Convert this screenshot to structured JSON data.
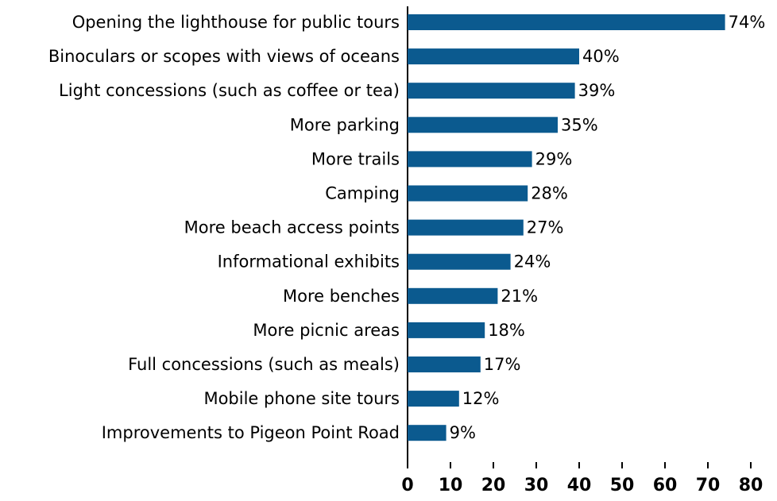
{
  "chart_data": {
    "type": "bar",
    "orientation": "horizontal",
    "color": "#0b5a8f",
    "categories": [
      "Opening the lighthouse for public tours",
      "Binoculars or scopes with views of oceans",
      "Light concessions (such as coffee or tea)",
      "More parking",
      "More trails",
      "Camping",
      "More beach access points",
      "Informational exhibits",
      "More benches",
      "More picnic areas",
      "Full concessions (such as meals)",
      "Mobile phone site tours",
      "Improvements to Pigeon Point Road"
    ],
    "values": [
      74,
      40,
      39,
      35,
      29,
      28,
      27,
      24,
      21,
      18,
      17,
      12,
      9
    ],
    "value_labels": [
      "74%",
      "40%",
      "39%",
      "35%",
      "29%",
      "28%",
      "27%",
      "24%",
      "21%",
      "18%",
      "17%",
      "12%",
      "9%"
    ],
    "xlim": [
      0,
      80
    ],
    "xticks": [
      0,
      10,
      20,
      30,
      40,
      50,
      60,
      70,
      80
    ]
  }
}
